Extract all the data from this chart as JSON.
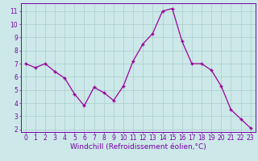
{
  "x": [
    0,
    1,
    2,
    3,
    4,
    5,
    6,
    7,
    8,
    9,
    10,
    11,
    12,
    13,
    14,
    15,
    16,
    17,
    18,
    19,
    20,
    21,
    22,
    23
  ],
  "y": [
    7.0,
    6.7,
    7.0,
    6.4,
    5.9,
    4.7,
    3.8,
    5.2,
    4.8,
    4.2,
    5.3,
    7.2,
    8.5,
    9.3,
    11.0,
    11.2,
    8.7,
    7.0,
    7.0,
    6.5,
    5.3,
    3.5,
    2.8,
    2.1
  ],
  "line_color": "#990099",
  "marker": "+",
  "marker_size": 3,
  "bg_color": "#cce8e8",
  "grid_color": "#aacece",
  "axis_color": "#7700aa",
  "tick_color": "#7700aa",
  "xlabel": "Windchill (Refroidissement éolien,°C)",
  "xlim": [
    -0.5,
    23.5
  ],
  "ylim": [
    1.8,
    11.6
  ],
  "yticks": [
    2,
    3,
    4,
    5,
    6,
    7,
    8,
    9,
    10,
    11
  ],
  "xticks": [
    0,
    1,
    2,
    3,
    4,
    5,
    6,
    7,
    8,
    9,
    10,
    11,
    12,
    13,
    14,
    15,
    16,
    17,
    18,
    19,
    20,
    21,
    22,
    23
  ],
  "tick_fontsize": 5.5,
  "label_fontsize": 6.5
}
